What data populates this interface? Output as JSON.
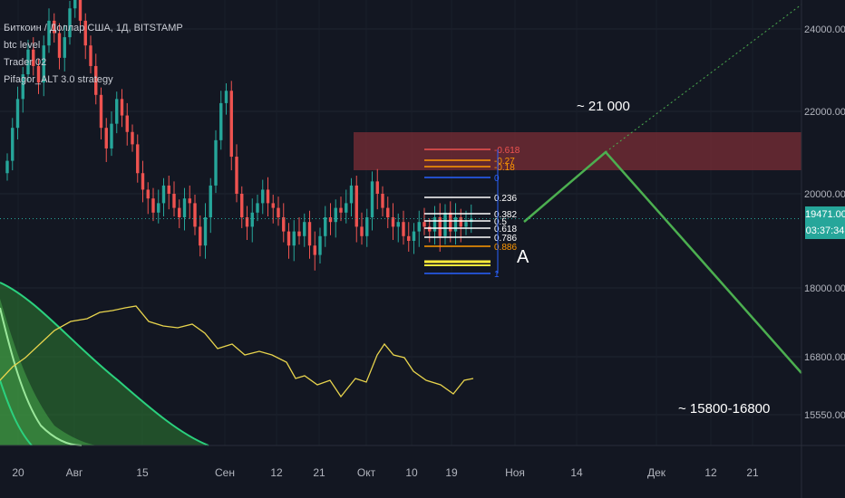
{
  "legend": {
    "title": "Биткоин / Доллар США, 1Д, BITSTAMP",
    "items": [
      "btc level",
      "Trader 02",
      "Pifagor_ALT 3.0 strategy"
    ]
  },
  "price_badge": {
    "price": "19471.00",
    "countdown": "03:37:34"
  },
  "annotations": {
    "target_up": "~ 21 000",
    "target_down": "~ 15800-16800",
    "wave_label": "A"
  },
  "colors": {
    "background": "#131722",
    "up": "#26a69a",
    "down": "#ef5350",
    "projection": "#4caf50",
    "indicator": "#e8d44d",
    "zone": "#7a2e36"
  },
  "chart_data": {
    "type": "candlestick",
    "x_ticks": [
      "20",
      "Авг",
      "15",
      "Сен",
      "12",
      "21",
      "Окт",
      "10",
      "19",
      "Ноя",
      "14",
      "Дек",
      "12",
      "21"
    ],
    "y_ticks": [
      24000,
      22000,
      20000,
      18000,
      16800,
      15550
    ],
    "y_tick_labels": [
      "24000.00",
      "22000.00",
      "20000.00",
      "18000.00",
      "16800.00",
      "15550.00"
    ],
    "ohlc_close": [
      20800,
      21600,
      22300,
      22900,
      23500,
      23100,
      22700,
      23600,
      24200,
      23900,
      23300,
      23800,
      24500,
      24800,
      24200,
      23600,
      23100,
      22400,
      21600,
      21100,
      21700,
      22300,
      21900,
      21500,
      21200,
      20500,
      20100,
      19900,
      19600,
      19800,
      20200,
      20000,
      19700,
      19500,
      19900,
      19800,
      19300,
      18900,
      19500,
      20200,
      21300,
      22200,
      22500,
      20900,
      20000,
      19500,
      19300,
      19600,
      19800,
      20100,
      19800,
      19700,
      19500,
      19200,
      18900,
      19200,
      19100,
      19400,
      18900,
      18700,
      19100,
      19500,
      19400,
      19700,
      19600,
      19800,
      20200,
      19300,
      19100,
      19500,
      20300,
      20000,
      19700,
      19500,
      19300,
      19400,
      19100,
      19000,
      19200,
      19400,
      19300,
      19200,
      19500,
      19100,
      19600,
      19200,
      19500,
      19300,
      19400,
      19471
    ],
    "fib_levels": [
      {
        "label": "-0.618",
        "color": "#ef5350"
      },
      {
        "label": "-0.27",
        "color": "#ff9800"
      },
      {
        "label": "-0.18",
        "color": "#ff9800"
      },
      {
        "label": "0",
        "color": "#2962ff"
      },
      {
        "label": "0.236",
        "color": "#ffffff"
      },
      {
        "label": "0.382",
        "color": "#ffffff"
      },
      {
        "label": "0.5",
        "color": "#ffffff"
      },
      {
        "label": "0.618",
        "color": "#ffffff"
      },
      {
        "label": "0.786",
        "color": "#ffffff"
      },
      {
        "label": "0.886",
        "color": "#ff9800"
      },
      {
        "label": "1",
        "color": "#2962ff"
      }
    ],
    "projection": [
      {
        "date": "2022-10-24",
        "price": 19400
      },
      {
        "date": "2022-11-17",
        "price": 21000
      },
      {
        "date": "2022-12-31",
        "price": 16600
      }
    ]
  }
}
